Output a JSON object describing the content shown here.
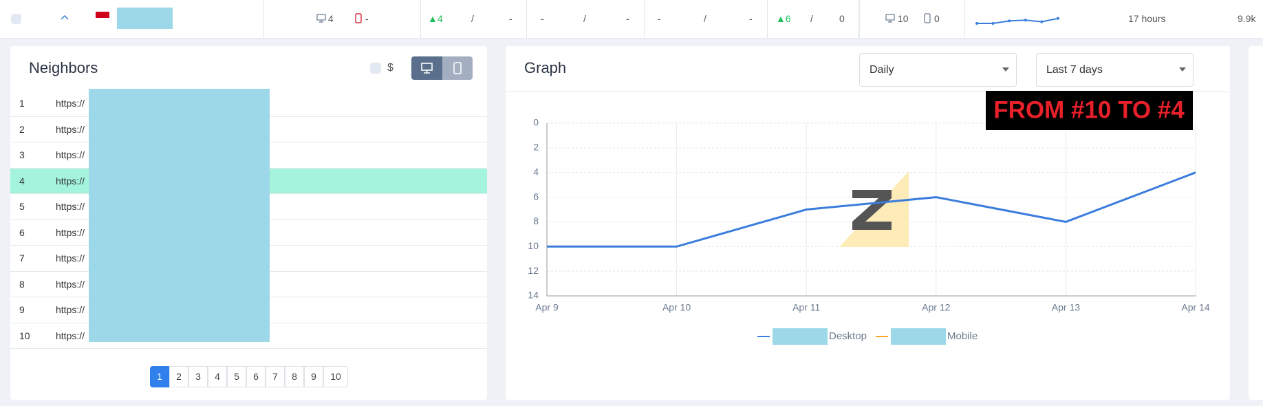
{
  "top_row": {
    "desktop_count": "4",
    "mobile_count": "-",
    "change_1": "▲4",
    "sep_1": "/",
    "val_1": "-",
    "val_2": "-",
    "sep_2": "/",
    "val_3": "-",
    "val_4": "-",
    "sep_3": "/",
    "val_5": "-",
    "change_2": "▲6",
    "sep_4": "/",
    "val_6": "0",
    "desktop_total": "10",
    "mobile_total": "0",
    "sparkline": [
      10,
      10,
      7,
      6,
      8,
      4
    ],
    "updated": "17 hours",
    "volume": "9.9k"
  },
  "neighbors": {
    "title": "Neighbors",
    "currency": "$",
    "rows": [
      {
        "rank": 1,
        "url": "https://"
      },
      {
        "rank": 2,
        "url": "https://"
      },
      {
        "rank": 3,
        "url": "https://"
      },
      {
        "rank": 4,
        "url": "https://"
      },
      {
        "rank": 5,
        "url": "https://"
      },
      {
        "rank": 6,
        "url": "https://"
      },
      {
        "rank": 7,
        "url": "https://"
      },
      {
        "rank": 8,
        "url": "https://"
      },
      {
        "rank": 9,
        "url": "https://"
      },
      {
        "rank": 10,
        "url": "https://"
      }
    ],
    "highlighted_row": 4,
    "pages": [
      1,
      2,
      3,
      4,
      5,
      6,
      7,
      8,
      9,
      10
    ],
    "current_page": 1
  },
  "graph": {
    "title": "Graph",
    "interval": "Daily",
    "range": "Last 7 days"
  },
  "chart_data": {
    "type": "line",
    "annotation": "FROM #10 TO #4",
    "categories": [
      "Apr 9",
      "Apr 10",
      "Apr 11",
      "Apr 12",
      "Apr 13",
      "Apr 14"
    ],
    "series": [
      {
        "name": "Desktop",
        "color": "#3b7ddd",
        "values": [
          10,
          10,
          7,
          6,
          8,
          4
        ]
      },
      {
        "name": "Mobile",
        "color": "#f5a623",
        "values": [
          null,
          null,
          null,
          null,
          null,
          null
        ]
      }
    ],
    "ylim": [
      14,
      0
    ],
    "yticks": [
      0,
      2,
      4,
      6,
      8,
      10,
      12,
      14
    ],
    "grid": true
  }
}
